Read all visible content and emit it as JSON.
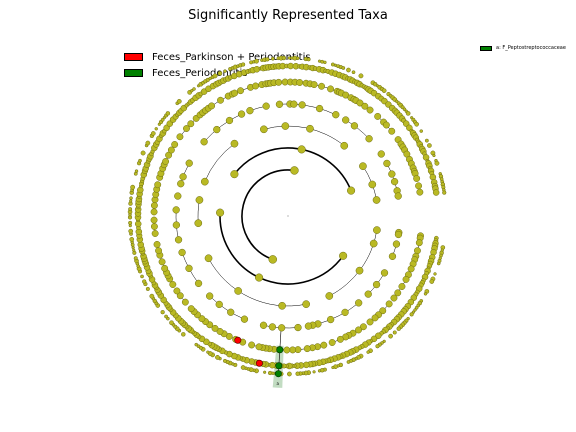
{
  "title": "Significantly Represented Taxa",
  "colors": {
    "parkinson": "#ff0000",
    "periodontitis": "#008000",
    "node_fill": "#b9b924",
    "node_stroke": "#6b6b10",
    "clade_highlight": "#8fbf8f",
    "line": "#000000"
  },
  "legend": [
    {
      "label": "Feces_Parkinson + Periodontitis",
      "color": "#ff0000"
    },
    {
      "label": "Feces_Periodontitis",
      "color": "#008000"
    }
  ],
  "clade_legend": {
    "label": "a: F_Peptostreptococcaceae",
    "color": "#008000"
  },
  "tree": {
    "type": "cladogram",
    "levels": 7,
    "highlighted": {
      "label": "a",
      "group": "Feces_Periodontitis",
      "center_angle_deg": 93.5,
      "span_deg": 3.2,
      "nodes_per_level": 3
    },
    "parkinson_nodes": [
      {
        "level": 5,
        "angle_deg": 112
      },
      {
        "level": 6,
        "angle_deg": 101
      }
    ]
  }
}
